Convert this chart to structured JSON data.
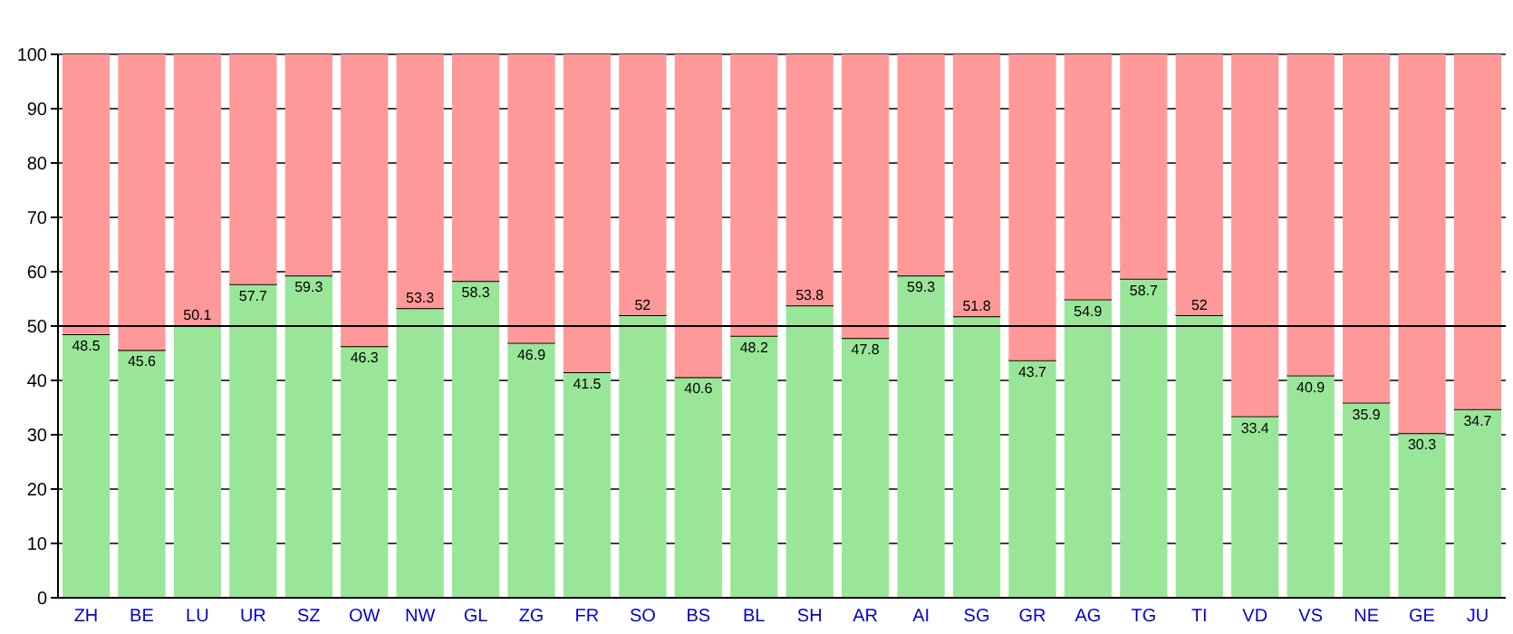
{
  "chart_data": {
    "type": "bar",
    "stacked": true,
    "categories": [
      "ZH",
      "BE",
      "LU",
      "UR",
      "SZ",
      "OW",
      "NW",
      "GL",
      "ZG",
      "FR",
      "SO",
      "BS",
      "BL",
      "SH",
      "AR",
      "AI",
      "SG",
      "GR",
      "AG",
      "TG",
      "TI",
      "VD",
      "VS",
      "NE",
      "GE",
      "JU"
    ],
    "series": [
      {
        "color": "#99e699",
        "values": [
          48.5,
          45.6,
          50.1,
          57.7,
          59.3,
          46.3,
          53.3,
          58.3,
          46.9,
          41.5,
          52,
          40.6,
          48.2,
          53.8,
          47.8,
          59.3,
          51.8,
          43.7,
          54.9,
          58.7,
          52,
          33.4,
          40.9,
          35.9,
          30.3,
          34.7
        ],
        "value_labels": [
          "48.5",
          "45.6",
          "50.1",
          "57.7",
          "59.3",
          "46.3",
          "53.3",
          "58.3",
          "46.9",
          "41.5",
          "52",
          "40.6",
          "48.2",
          "53.8",
          "47.8",
          "59.3",
          "51.8",
          "43.7",
          "54.9",
          "58.7",
          "52",
          "33.4",
          "40.9",
          "35.9",
          "30.3",
          "34.7"
        ]
      },
      {
        "color": "#ff9999",
        "values": [
          51.5,
          54.4,
          49.9,
          42.3,
          40.7,
          53.7,
          46.7,
          41.7,
          53.1,
          58.5,
          48,
          59.4,
          51.8,
          46.2,
          52.2,
          40.7,
          48.2,
          56.3,
          45.1,
          41.3,
          48,
          66.6,
          59.1,
          64.1,
          69.7,
          65.3
        ]
      }
    ],
    "ylim": [
      0,
      100
    ],
    "yticks": [
      0,
      10,
      20,
      30,
      40,
      50,
      60,
      70,
      80,
      90,
      100
    ],
    "grid": "y",
    "ref_lines": [
      {
        "axis": "y",
        "value": 50,
        "color": "#000000"
      }
    ]
  }
}
